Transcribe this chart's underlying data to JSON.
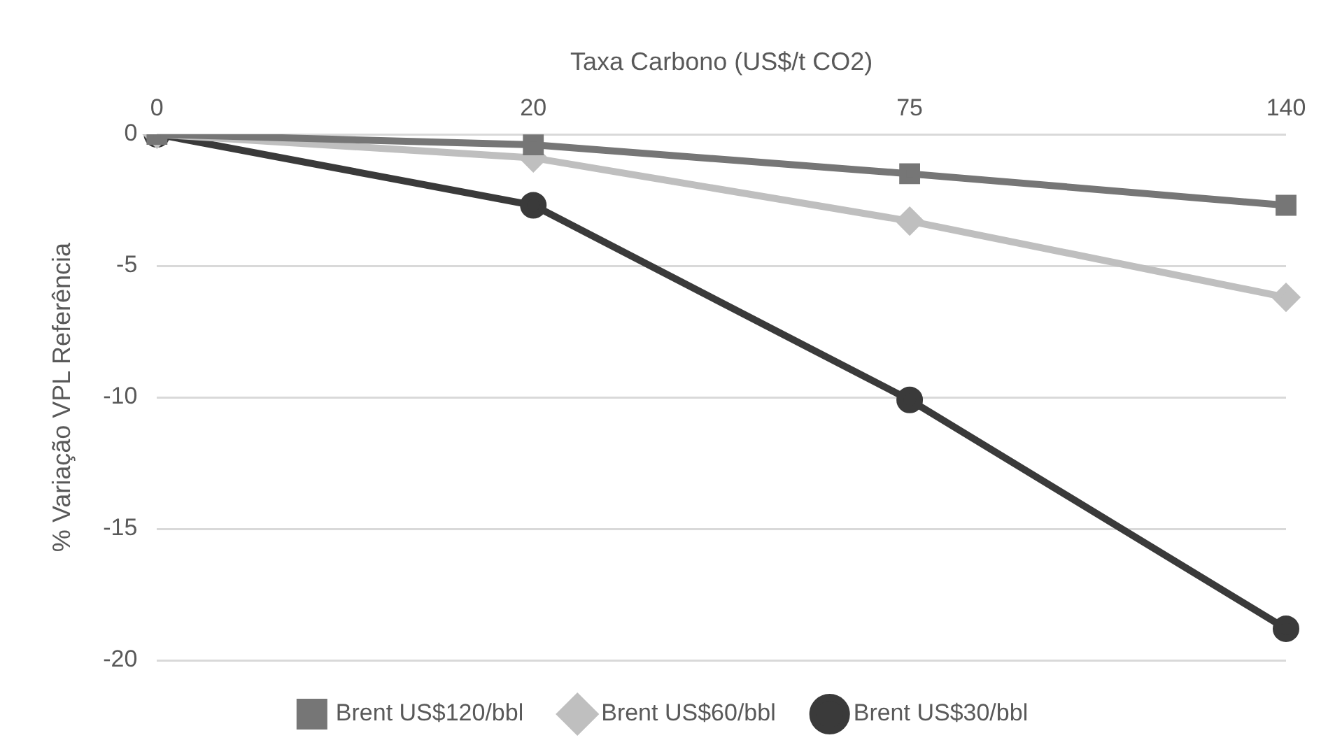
{
  "chart_data": {
    "type": "line",
    "xlabel": "Taxa Carbono (US$/t CO2)",
    "ylabel": "% Variação VPL Referência",
    "categories": [
      "0",
      "20",
      "75",
      "140"
    ],
    "series": [
      {
        "name": "Brent US$120/bbl",
        "color": "#767676",
        "marker": "square",
        "values": [
          0,
          -0.4,
          -1.5,
          -2.7
        ]
      },
      {
        "name": "Brent US$60/bbl",
        "color": "#bfbfbf",
        "marker": "diamond",
        "values": [
          0,
          -0.9,
          -3.3,
          -6.2
        ]
      },
      {
        "name": "Brent US$30/bbl",
        "color": "#3a3a3a",
        "marker": "circle",
        "values": [
          0,
          -2.7,
          -10.1,
          -18.8
        ]
      }
    ],
    "ylim": [
      -20,
      0
    ],
    "yticks": [
      -20,
      -15,
      -10,
      -5,
      0
    ],
    "grid": "y",
    "legend": "bottom"
  }
}
